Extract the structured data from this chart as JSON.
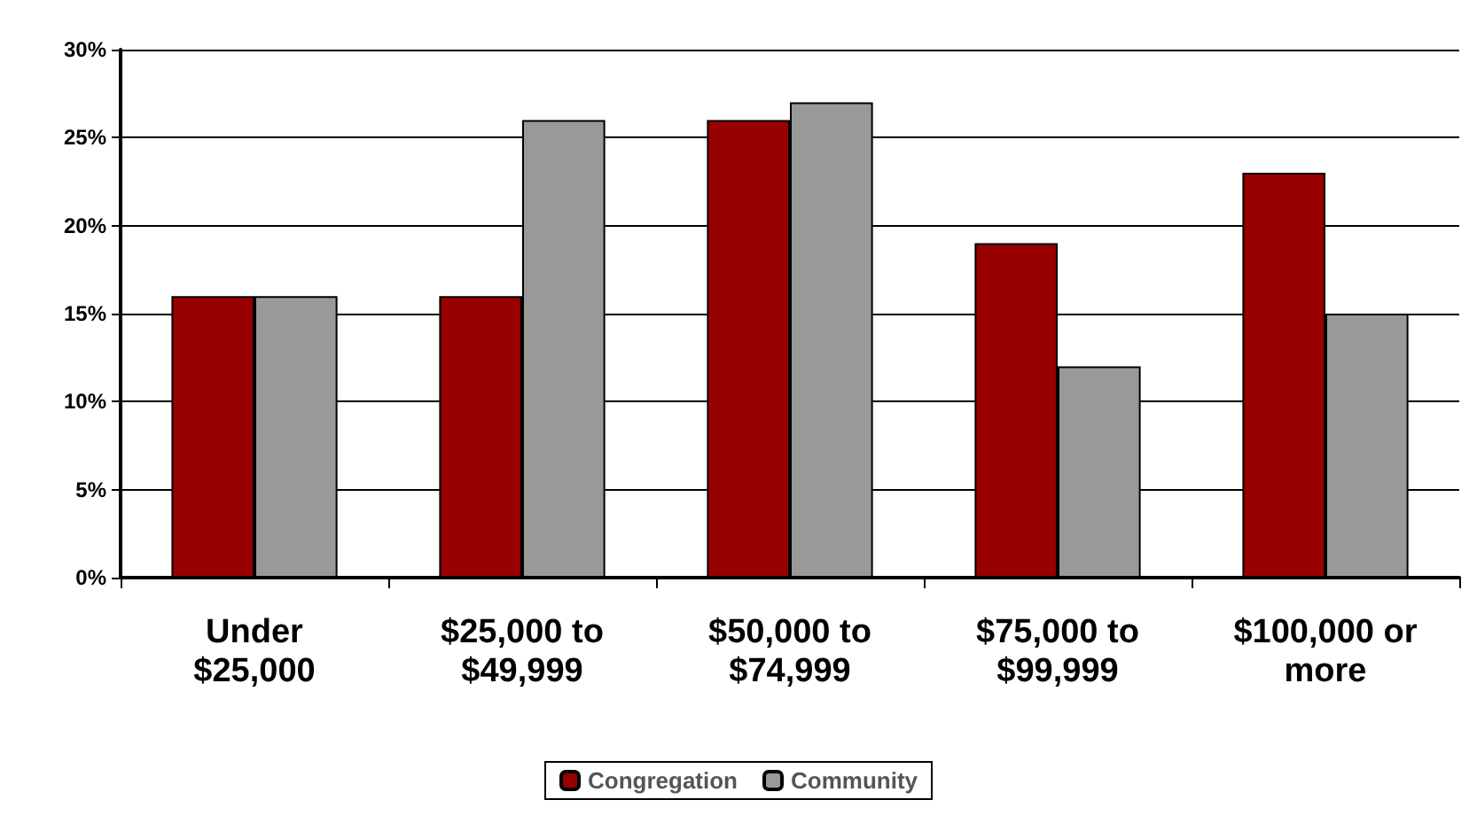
{
  "chart_data": {
    "type": "bar",
    "categories": [
      "Under $25,000",
      "$25,000 to $49,999",
      "$50,000 to $74,999",
      "$75,000 to $99,999",
      "$100,000 or more"
    ],
    "series": [
      {
        "name": "Congregation",
        "color": "#990000",
        "values": [
          16,
          16,
          26,
          19,
          23
        ]
      },
      {
        "name": "Community",
        "color": "#999999",
        "values": [
          16,
          26,
          27,
          12,
          15
        ]
      }
    ],
    "ylim": [
      0,
      30
    ],
    "yticks": [
      {
        "value": 0,
        "label": "0%"
      },
      {
        "value": 5,
        "label": "5%"
      },
      {
        "value": 10,
        "label": "10%"
      },
      {
        "value": 15,
        "label": "15%"
      },
      {
        "value": 20,
        "label": "20%"
      },
      {
        "value": 25,
        "label": "25%"
      },
      {
        "value": 30,
        "label": "30%"
      }
    ],
    "grid": "y",
    "legend": "bottom"
  }
}
